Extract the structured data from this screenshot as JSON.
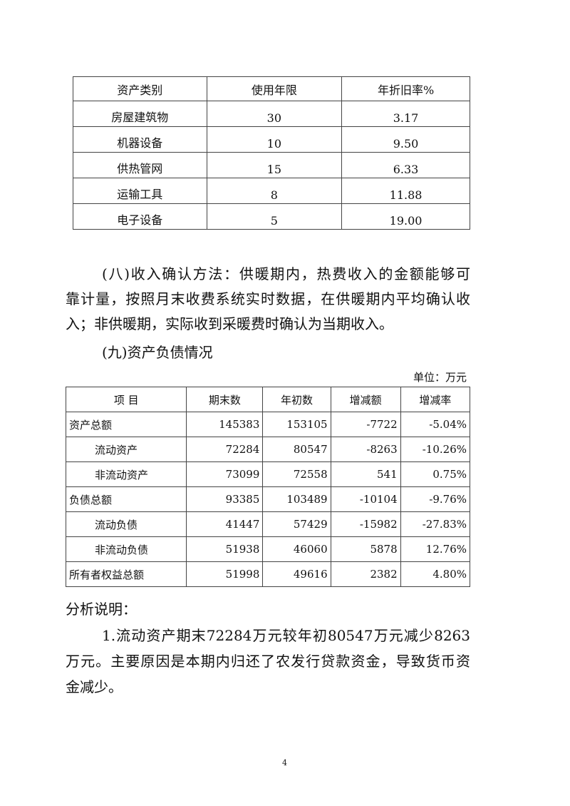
{
  "depreciation_table": {
    "headers": [
      "资产类别",
      "使用年限",
      "年折旧率%"
    ],
    "rows": [
      [
        "房屋建筑物",
        "30",
        "3.17"
      ],
      [
        "机器设备",
        "10",
        "9.50"
      ],
      [
        "供热管网",
        "15",
        "6.33"
      ],
      [
        "运输工具",
        "8",
        "11.88"
      ],
      [
        "电子设备",
        "5",
        "19.00"
      ]
    ]
  },
  "revenue_paragraph": [
    "(八)收入确认方法：供暖期内，热费收入的金额能够可",
    "靠计量，按照月末收费系统实时数据，在供暖期内平均确认收",
    "入；非供暖期，实际收到采暖费时确认为当期收入。"
  ],
  "section_heading": "(九)资产负债情况",
  "unit_label": "单位：万元",
  "balance_table": {
    "headers": [
      "项  目",
      "期末数",
      "年初数",
      "增减额",
      "增减率"
    ],
    "rows": [
      [
        "资产总额",
        "145383",
        "153105",
        "-7722",
        "-5.04%"
      ],
      [
        "流动资产",
        "72284",
        "80547",
        "-8263",
        "-10.26%"
      ],
      [
        "非流动资产",
        "73099",
        "72558",
        "541",
        "0.75%"
      ],
      [
        "负债总额",
        "93385",
        "103489",
        "-10104",
        "-9.76%"
      ],
      [
        "流动负债",
        "41447",
        "57429",
        "-15982",
        "-27.83%"
      ],
      [
        "非流动负债",
        "51938",
        "46060",
        "5878",
        "12.76%"
      ],
      [
        "所有者权益总额",
        "51998",
        "49616",
        "2382",
        "4.80%"
      ]
    ]
  },
  "analysis_heading": "分析说明：",
  "analysis_paragraph": [
    "1.流动资产期末72284万元较年初80547万元减少8263",
    "万元。主要原因是本期内归还了农发行贷款资金，导致货币资",
    "金减少。"
  ],
  "page_number": "4"
}
